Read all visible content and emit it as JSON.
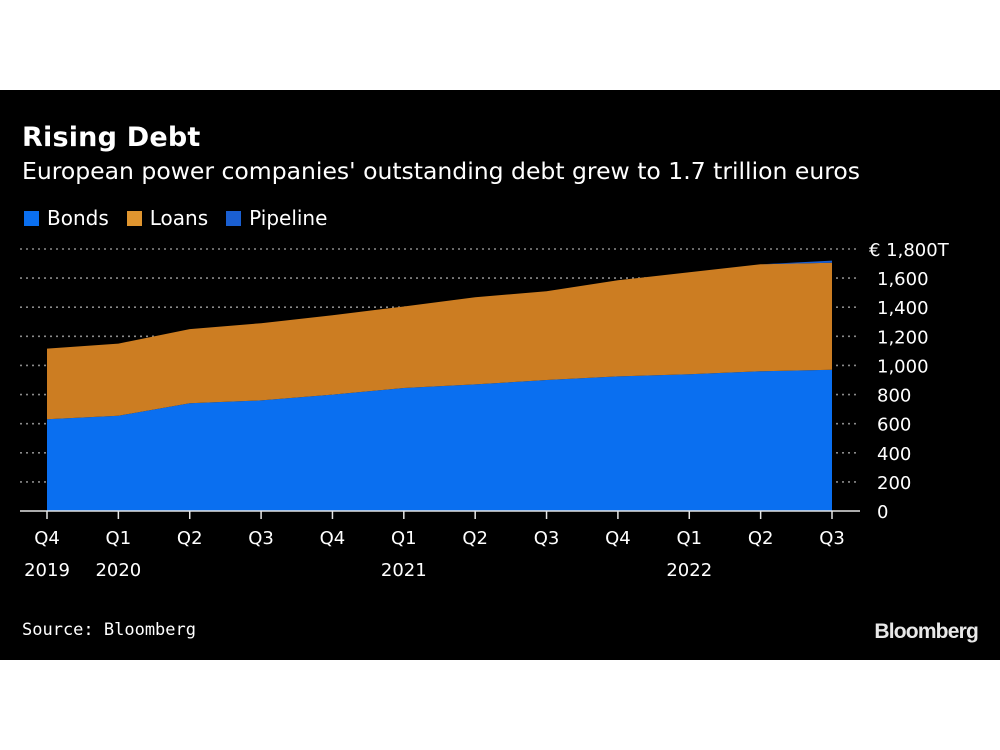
{
  "chart_data": {
    "type": "area",
    "stacked": true,
    "title": "Rising Debt",
    "subtitle": "European power companies' outstanding debt grew to 1.7 trillion euros",
    "xlabel": "",
    "ylabel": "",
    "ylim": [
      0,
      1800
    ],
    "y_unit_prefix": "€",
    "y_unit_suffix": "T",
    "y_ticks": [
      0,
      200,
      400,
      600,
      800,
      1000,
      1200,
      1400,
      1600,
      1800
    ],
    "y_tick_labels": [
      "0",
      "200",
      "400",
      "600",
      "800",
      "1,000",
      "1,200",
      "1,400",
      "1,600",
      "€ 1,800T"
    ],
    "y_axis_side": "right",
    "grid": true,
    "legend_position": "top-left",
    "categories": [
      "Q4 2019",
      "Q1 2020",
      "Q2 2020",
      "Q3 2020",
      "Q4 2020",
      "Q1 2021",
      "Q2 2021",
      "Q3 2021",
      "Q4 2021",
      "Q1 2022",
      "Q2 2022",
      "Q3 2022"
    ],
    "x_tick_labels": [
      {
        "quarter": "Q4",
        "year": "2019"
      },
      {
        "quarter": "Q1",
        "year": "2020"
      },
      {
        "quarter": "Q2",
        "year": ""
      },
      {
        "quarter": "Q3",
        "year": ""
      },
      {
        "quarter": "Q4",
        "year": ""
      },
      {
        "quarter": "Q1",
        "year": "2021"
      },
      {
        "quarter": "Q2",
        "year": ""
      },
      {
        "quarter": "Q3",
        "year": ""
      },
      {
        "quarter": "Q4",
        "year": ""
      },
      {
        "quarter": "Q1",
        "year": "2022"
      },
      {
        "quarter": "Q2",
        "year": ""
      },
      {
        "quarter": "Q3",
        "year": ""
      }
    ],
    "series": [
      {
        "name": "Bonds",
        "color": "#0a6ff0",
        "values": [
          630,
          655,
          740,
          760,
          800,
          845,
          870,
          900,
          925,
          940,
          960,
          970
        ]
      },
      {
        "name": "Loans",
        "color": "#cc7d22",
        "values": [
          486,
          495,
          510,
          530,
          545,
          560,
          598,
          610,
          660,
          700,
          735,
          735
        ]
      },
      {
        "name": "Pipeline",
        "color": "#1a5fd1",
        "values": [
          0,
          0,
          0,
          0,
          0,
          0,
          0,
          0,
          0,
          0,
          0,
          15
        ]
      }
    ]
  },
  "header": {
    "title": "Rising Debt",
    "subtitle": "European power companies' outstanding debt grew to 1.7 trillion euros"
  },
  "legend": [
    {
      "label": "Bonds",
      "color": "#0a6ff0"
    },
    {
      "label": "Loans",
      "color": "#e0952f"
    },
    {
      "label": "Pipeline",
      "color": "#1a5fd1"
    }
  ],
  "footer": {
    "source": "Source: Bloomberg",
    "brand": "Bloomberg"
  }
}
